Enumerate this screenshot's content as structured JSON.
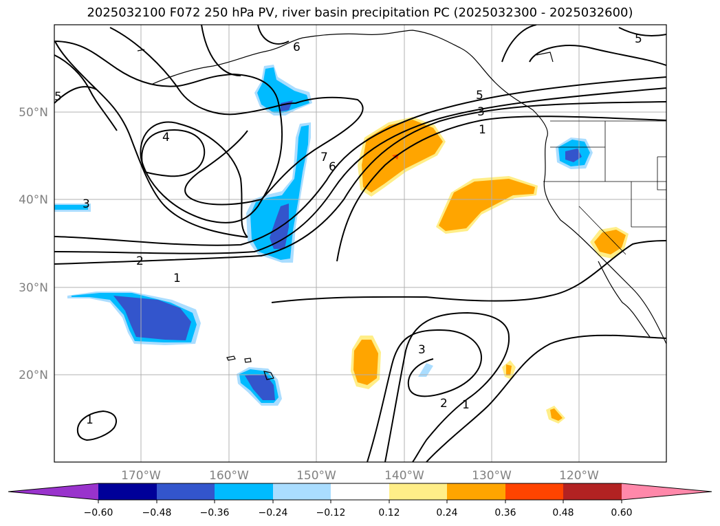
{
  "title": "2025032100 F072 250 hPa PV, river basin precipitation PC (2025032300 - 2025032600)",
  "map": {
    "lat_labels": [
      "50°N",
      "40°N",
      "30°N",
      "20°N"
    ],
    "lon_labels": [
      "170°W",
      "160°W",
      "150°W",
      "140°W",
      "130°W",
      "120°W"
    ],
    "pv_contour_labels": [
      "1",
      "1",
      "1",
      "1",
      "2",
      "2",
      "3",
      "3",
      "3",
      "4",
      "5",
      "5",
      "6",
      "7",
      "6",
      "5"
    ],
    "colors": {
      "coastline": "#000000",
      "gridlines": "#b0b0b0",
      "pv_contour": "#000000"
    }
  },
  "colorbar": {
    "ticks": [
      "−0.60",
      "−0.48",
      "−0.36",
      "−0.24",
      "−0.12",
      "0.12",
      "0.24",
      "0.36",
      "0.48",
      "0.60"
    ],
    "colors": [
      "#9933cc",
      "#000099",
      "#3355cc",
      "#00bbff",
      "#aaddff",
      "#ffffff",
      "#ffee88",
      "#ffa500",
      "#ff4400",
      "#b22222",
      "#ff88aa"
    ]
  }
}
